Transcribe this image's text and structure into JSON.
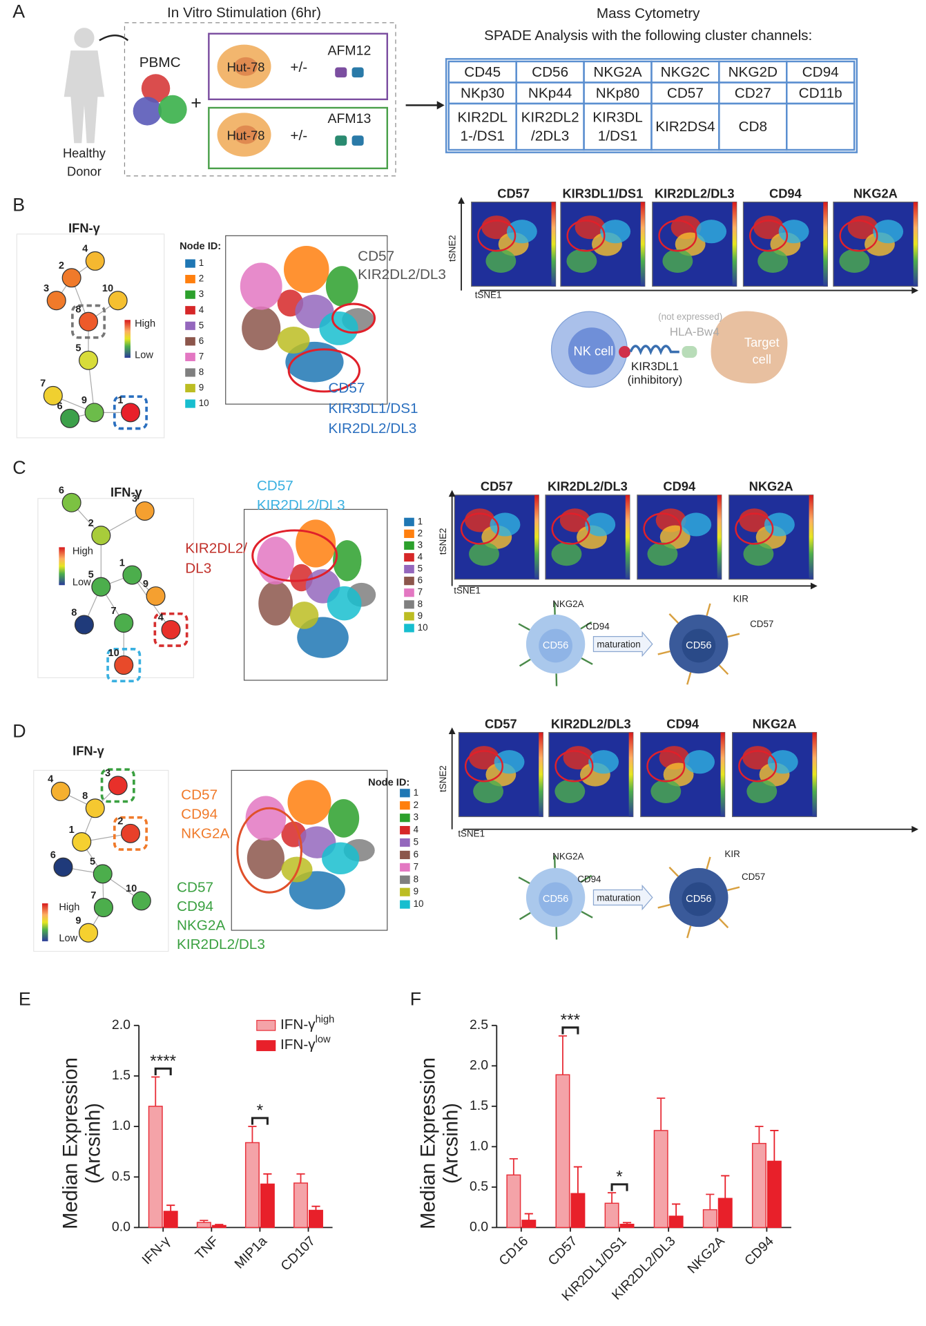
{
  "panel_a": {
    "label": "A",
    "stimulation": "In Vitro Stimulation (6hr)",
    "donor": [
      "Healthy",
      "Donor"
    ],
    "pbmc": "PBMC",
    "plus": "+",
    "target_cell": "Hut-78",
    "plus_minus": "+/-",
    "antibodies": [
      "AFM12",
      "AFM13"
    ],
    "analysis": [
      "Mass Cytometry",
      "SPADE Analysis with the following cluster channels:"
    ],
    "channels": [
      [
        [
          "CD45"
        ],
        [
          "CD56"
        ],
        [
          "NKG2A"
        ],
        [
          "NKG2C"
        ],
        [
          "NKG2D"
        ],
        [
          "CD94"
        ]
      ],
      [
        [
          "NKp30"
        ],
        [
          "NKp44"
        ],
        [
          "NKp80"
        ],
        [
          "CD57"
        ],
        [
          "CD27"
        ],
        [
          "CD11b"
        ]
      ],
      [
        [
          "KIR2DL",
          "1-/DS1"
        ],
        [
          "KIR2DL2",
          "/2DL3"
        ],
        [
          "KIR3DL",
          "1/DS1"
        ],
        [
          "KIR2DS4"
        ],
        [
          "CD8"
        ]
      ]
    ]
  },
  "cluster_colors": [
    "#1f77b4",
    "#ff7f0e",
    "#2ca02c",
    "#d62728",
    "#9467bd",
    "#8c564b",
    "#e377c2",
    "#7f7f7f",
    "#bcbd22",
    "#17becf"
  ],
  "panel_b": {
    "label": "B",
    "tree_title": "IFN-γ",
    "scale": [
      "High",
      "Low"
    ],
    "nodes": [
      {
        "id": 4,
        "color": "#f5b830"
      },
      {
        "id": 2,
        "color": "#f07a2a"
      },
      {
        "id": 3,
        "color": "#f07a2a"
      },
      {
        "id": 10,
        "color": "#f5c030"
      },
      {
        "id": 8,
        "color": "#ee5a2a"
      },
      {
        "id": 5,
        "color": "#d8dc3a"
      },
      {
        "id": 7,
        "color": "#f0d030"
      },
      {
        "id": 9,
        "color": "#6cbc4a"
      },
      {
        "id": 6,
        "color": "#3ca04a"
      },
      {
        "id": 1,
        "color": "#e8202a"
      }
    ],
    "node_legend_title": "Node ID:",
    "cluster_ids": [
      1,
      2,
      3,
      4,
      5,
      6,
      7,
      8,
      9,
      10
    ],
    "annotations": [
      {
        "lines": [
          "CD57",
          "KIR2DL2/DL3"
        ],
        "color": "#555555"
      },
      {
        "lines": [
          "CD57",
          "KIR3DL1/DS1",
          "KIR2DL2/DL3"
        ],
        "color": "#2a6fbf"
      }
    ],
    "heatmaps": [
      "CD57",
      "KIR3DL1/DS1",
      "KIR2DL2/DL3",
      "CD94",
      "NKG2A"
    ],
    "tsne_axes": [
      "tSNE1",
      "tSNE2"
    ],
    "diagram": {
      "cell": "NK cell",
      "receptor": [
        "KIR3DL1",
        "(inhibitory)"
      ],
      "ligand_note": "(not expressed)",
      "ligand": "HLA-Bw4",
      "target": [
        "Target",
        "cell"
      ]
    }
  },
  "panel_c": {
    "label": "C",
    "tree_title": "IFN-γ",
    "scale": [
      "High",
      "Low"
    ],
    "nodes": [
      {
        "id": 6,
        "color": "#7cc242"
      },
      {
        "id": 3,
        "color": "#f5a030"
      },
      {
        "id": 2,
        "color": "#a8cc3a"
      },
      {
        "id": 1,
        "color": "#4cae4c"
      },
      {
        "id": 5,
        "color": "#4cae4c"
      },
      {
        "id": 9,
        "color": "#f5a030"
      },
      {
        "id": 8,
        "color": "#1f3a7a"
      },
      {
        "id": 7,
        "color": "#4cae4c"
      },
      {
        "id": 4,
        "color": "#e8302a"
      },
      {
        "id": 10,
        "color": "#e84a2a"
      }
    ],
    "cluster_ids": [
      1,
      2,
      3,
      4,
      5,
      6,
      7,
      8,
      9,
      10
    ],
    "annotations": [
      {
        "lines": [
          "KIR2DL2/",
          "DL3"
        ],
        "color": "#c0302a"
      },
      {
        "lines": [
          "CD57",
          "KIR2DL2/DL3"
        ],
        "color": "#3ab0e0"
      }
    ],
    "heatmaps": [
      "CD57",
      "KIR2DL2/DL3",
      "CD94",
      "NKG2A"
    ],
    "tsne_axes": [
      "tSNE1",
      "tSNE2"
    ],
    "diagram": {
      "left_labels": [
        "NKG2A",
        "CD94"
      ],
      "center": "CD56",
      "arrow": "maturation",
      "right_labels": [
        "KIR",
        "CD57"
      ],
      "right_center": "CD56"
    }
  },
  "panel_d": {
    "label": "D",
    "tree_title": "IFN-γ",
    "scale": [
      "High",
      "Low"
    ],
    "nodes": [
      {
        "id": 4,
        "color": "#f5b030"
      },
      {
        "id": 3,
        "color": "#e8302a"
      },
      {
        "id": 8,
        "color": "#f5c830"
      },
      {
        "id": 2,
        "color": "#e8402a"
      },
      {
        "id": 1,
        "color": "#f5d030"
      },
      {
        "id": 6,
        "color": "#1f3a7a"
      },
      {
        "id": 5,
        "color": "#4cae4c"
      },
      {
        "id": 10,
        "color": "#4cae4c"
      },
      {
        "id": 7,
        "color": "#4cae4c"
      },
      {
        "id": 9,
        "color": "#f5d030"
      }
    ],
    "node_legend_title": "Node ID:",
    "cluster_ids": [
      1,
      2,
      3,
      4,
      5,
      6,
      7,
      8,
      9,
      10
    ],
    "annotations": [
      {
        "lines": [
          "CD57",
          "CD94",
          "NKG2A"
        ],
        "color": "#f07a2a"
      },
      {
        "lines": [
          "CD57",
          "CD94",
          "NKG2A",
          "KIR2DL2/DL3"
        ],
        "color": "#3aa040"
      }
    ],
    "heatmaps": [
      "CD57",
      "KIR2DL2/DL3",
      "CD94",
      "NKG2A"
    ],
    "tsne_axes": [
      "tSNE1",
      "tSNE2"
    ],
    "diagram": {
      "left_labels": [
        "NKG2A",
        "CD94"
      ],
      "center": "CD56",
      "arrow": "maturation",
      "right_labels": [
        "KIR",
        "CD57"
      ],
      "right_center": "CD56"
    }
  },
  "chart_data": [
    {
      "type": "bar",
      "label": "E",
      "ylabel": [
        "Median Expression",
        "(Arcsinh)"
      ],
      "categories": [
        "IFN-γ",
        "TNF",
        "MIP1a",
        "CD107"
      ],
      "series": [
        {
          "name": "IFN-γ",
          "superscript": "high",
          "color": "#f4a3a8",
          "edge": "#e8303a",
          "values": [
            1.2,
            0.05,
            0.84,
            0.44
          ],
          "errors": [
            0.29,
            0.02,
            0.16,
            0.09
          ]
        },
        {
          "name": "IFN-γ",
          "superscript": "low",
          "color": "#e8202a",
          "edge": "#e8202a",
          "values": [
            0.16,
            0.02,
            0.43,
            0.17
          ],
          "errors": [
            0.06,
            0.01,
            0.1,
            0.04
          ]
        }
      ],
      "ylim": [
        0,
        2
      ],
      "yticks": [
        {
          "value": 0,
          "label": "0.0"
        },
        0.5,
        {
          "value": 1,
          "label": "1.0"
        },
        1.5,
        {
          "value": 2,
          "label": "2.0"
        }
      ],
      "significance": [
        {
          "category": "IFN-γ",
          "label": "****"
        },
        {
          "category": "MIP1a",
          "label": "*"
        }
      ],
      "legend": "top-right"
    },
    {
      "type": "bar",
      "label": "F",
      "ylabel": [
        "Median Expression",
        "(Arcsinh)"
      ],
      "categories": [
        "CD16",
        "CD57",
        "KIR2DL1/DS1",
        "KIR2DL2/DL3",
        "NKG2A",
        "CD94"
      ],
      "series": [
        {
          "name": "IFN-γ",
          "superscript": "high",
          "color": "#f4a3a8",
          "edge": "#e8303a",
          "values": [
            0.65,
            1.89,
            0.3,
            1.2,
            0.22,
            1.04
          ],
          "errors": [
            0.2,
            0.48,
            0.13,
            0.4,
            0.19,
            0.21
          ]
        },
        {
          "name": "IFN-γ",
          "superscript": "low",
          "color": "#e8202a",
          "edge": "#e8202a",
          "values": [
            0.09,
            0.42,
            0.04,
            0.14,
            0.36,
            0.82
          ],
          "errors": [
            0.08,
            0.33,
            0.02,
            0.15,
            0.28,
            0.38
          ]
        }
      ],
      "ylim": [
        0,
        2.5
      ],
      "yticks": [
        {
          "value": 0,
          "label": "0.0"
        },
        0.5,
        {
          "value": 1,
          "label": "1.0"
        },
        1.5,
        {
          "value": 2,
          "label": "2.0"
        },
        2.5
      ],
      "significance": [
        {
          "category": "CD57",
          "label": "***"
        },
        {
          "category": "KIR2DL1/DS1",
          "label": "*"
        }
      ]
    }
  ]
}
